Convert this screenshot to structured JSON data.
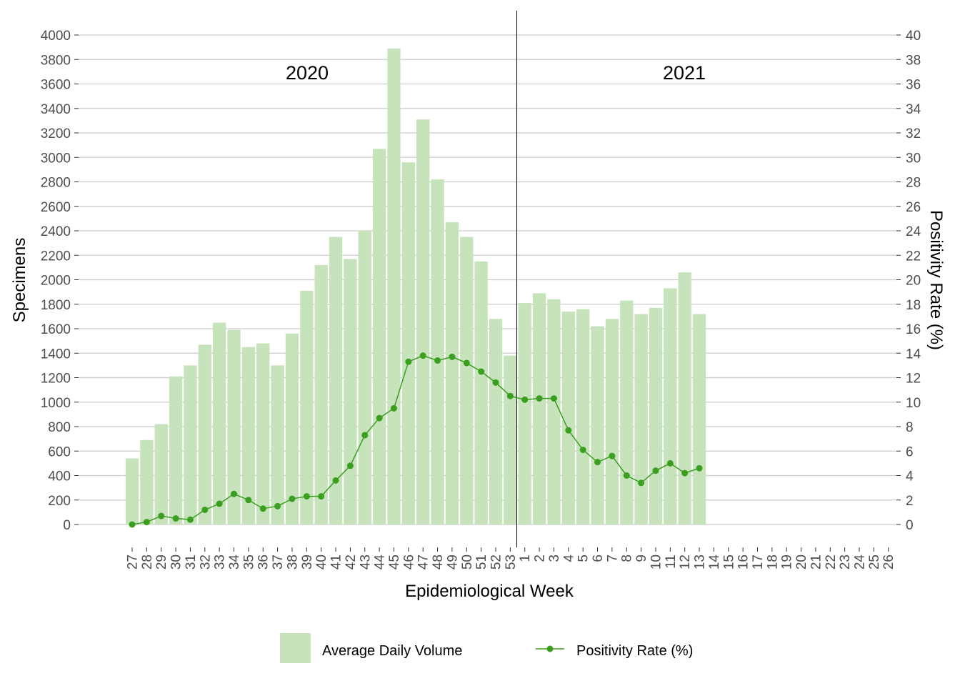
{
  "chart_data": {
    "type": "bar+line",
    "xlabel": "Epidemiological Week",
    "ylabel_left": "Specimens",
    "ylabel_right": "Positivity Rate (%)",
    "ylim_left": [
      0,
      4000
    ],
    "ylim_right": [
      0,
      40
    ],
    "yticks_left": [
      "0",
      "200",
      "400",
      "600",
      "800",
      "1000",
      "1200",
      "1400",
      "1600",
      "1800",
      "2000",
      "2200",
      "2400",
      "2600",
      "2800",
      "3000",
      "3200",
      "3400",
      "3600",
      "3800",
      "4000"
    ],
    "yticks_right": [
      "0",
      "2",
      "4",
      "6",
      "8",
      "10",
      "12",
      "14",
      "16",
      "18",
      "20",
      "22",
      "24",
      "26",
      "28",
      "30",
      "32",
      "34",
      "36",
      "38",
      "40"
    ],
    "grid": true,
    "legend_position": "bottom",
    "categories": [
      "27",
      "28",
      "29",
      "30",
      "31",
      "32",
      "33",
      "34",
      "35",
      "36",
      "37",
      "38",
      "39",
      "40",
      "41",
      "42",
      "43",
      "44",
      "45",
      "46",
      "47",
      "48",
      "49",
      "50",
      "51",
      "52",
      "53",
      "1",
      "2",
      "3",
      "4",
      "5",
      "6",
      "7",
      "8",
      "9",
      "10",
      "11",
      "12",
      "13",
      "14",
      "15",
      "16",
      "17",
      "18",
      "19",
      "20",
      "21",
      "22",
      "23",
      "24",
      "25",
      "26"
    ],
    "year_labels": [
      "2020",
      "2021"
    ],
    "year_divider_after": "53",
    "series": [
      {
        "name": "Average Daily Volume",
        "type": "bar",
        "axis": "left",
        "color": "#c7e3bb",
        "values": [
          540,
          690,
          820,
          1210,
          1300,
          1470,
          1650,
          1590,
          1450,
          1480,
          1300,
          1560,
          1910,
          2120,
          2350,
          2170,
          2400,
          3070,
          3890,
          2960,
          3310,
          2820,
          2470,
          2350,
          2150,
          1680,
          1380,
          1810,
          1890,
          1840,
          1740,
          1760,
          1620,
          1680,
          1830,
          1720,
          1770,
          1930,
          2060,
          1720,
          null,
          null,
          null,
          null,
          null,
          null,
          null,
          null,
          null,
          null,
          null,
          null,
          null
        ]
      },
      {
        "name": "Positivity Rate (%)",
        "type": "line",
        "axis": "right",
        "color": "#3a9e1f",
        "values": [
          0.0,
          0.2,
          0.7,
          0.5,
          0.4,
          1.2,
          1.7,
          2.5,
          2.0,
          1.3,
          1.5,
          2.1,
          2.3,
          2.3,
          3.6,
          4.8,
          7.3,
          8.7,
          9.5,
          13.3,
          13.8,
          13.4,
          13.7,
          13.2,
          12.5,
          11.6,
          10.5,
          10.2,
          10.3,
          10.3,
          7.7,
          6.1,
          5.1,
          5.6,
          4.0,
          3.4,
          4.4,
          5.0,
          4.2,
          4.6,
          null,
          null,
          null,
          null,
          null,
          null,
          null,
          null,
          null,
          null,
          null,
          null,
          null
        ]
      }
    ]
  }
}
